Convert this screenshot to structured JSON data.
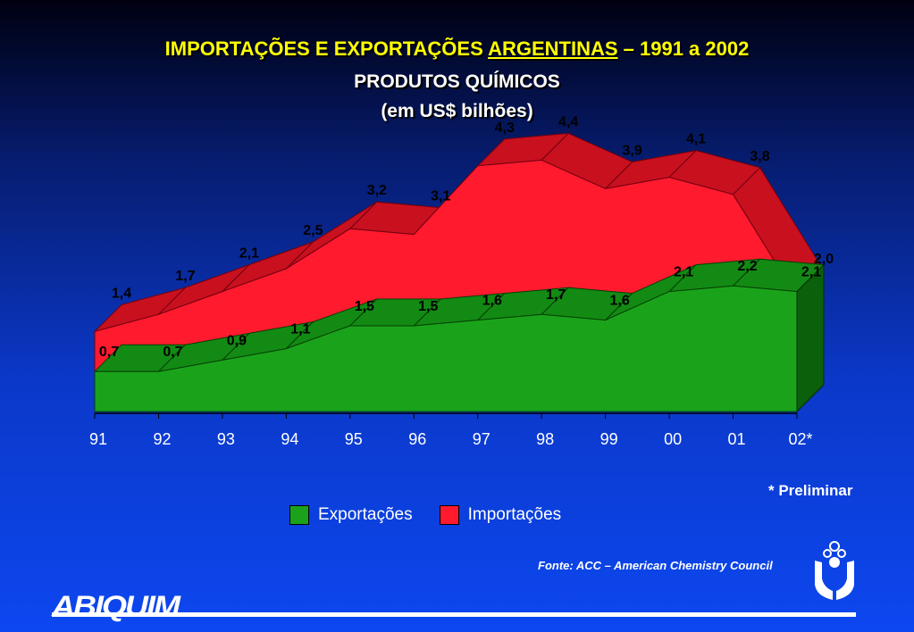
{
  "title": {
    "line1_a": "IMPORTAÇÕES E EXPORTAÇÕES ",
    "line1_b": "ARGENTINAS",
    "line1_c": " – 1991 a 2002",
    "line2": "PRODUTOS QUÍMICOS",
    "line3": "(em US$ bilhões)"
  },
  "chart_data": {
    "type": "area",
    "categories": [
      "91",
      "92",
      "93",
      "94",
      "95",
      "96",
      "97",
      "98",
      "99",
      "00",
      "01",
      "02*"
    ],
    "series": [
      {
        "name": "Exportações",
        "values": [
          0.7,
          0.7,
          0.9,
          1.1,
          1.5,
          1.5,
          1.6,
          1.7,
          1.6,
          2.1,
          2.2,
          2.1
        ],
        "labels": [
          "0,7",
          "0,7",
          "0,9",
          "1,1",
          "1,5",
          "1,5",
          "1,6",
          "1,7",
          "1,6",
          "2,1",
          "2,2",
          "2,1"
        ],
        "color": "#1aa31a"
      },
      {
        "name": "Importações",
        "values": [
          1.4,
          1.7,
          2.1,
          2.5,
          3.2,
          3.1,
          4.3,
          4.4,
          3.9,
          4.1,
          3.8,
          2.0
        ],
        "labels": [
          "1,4",
          "1,7",
          "2,1",
          "2,5",
          "3,2",
          "3,1",
          "4,3",
          "4,4",
          "3,9",
          "4,1",
          "3,8",
          "2,0"
        ],
        "color": "#ff1a2e"
      }
    ],
    "style": "3d"
  },
  "footnote": "*  Preliminar",
  "legend": {
    "exports": "Exportações",
    "imports": "Importações"
  },
  "source": "Fonte: ACC – American Chemistry Council",
  "logo": "ABIQUIM"
}
